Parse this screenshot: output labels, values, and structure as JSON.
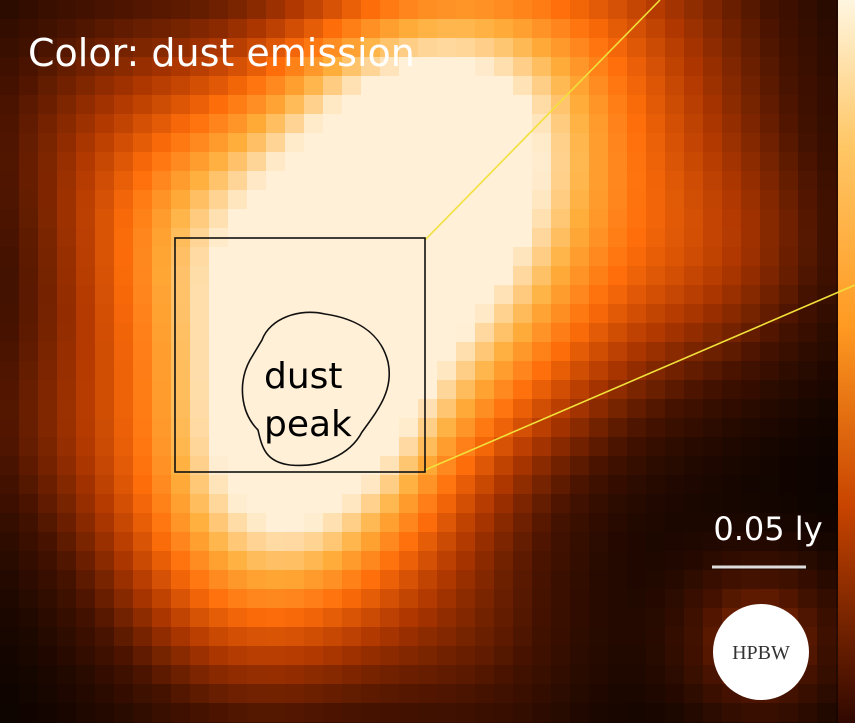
{
  "title": "Color: dust emission",
  "peak_label": [
    "dust",
    "peak"
  ],
  "scale_bar": "0.05 ly",
  "beam": "HPBW"
}
